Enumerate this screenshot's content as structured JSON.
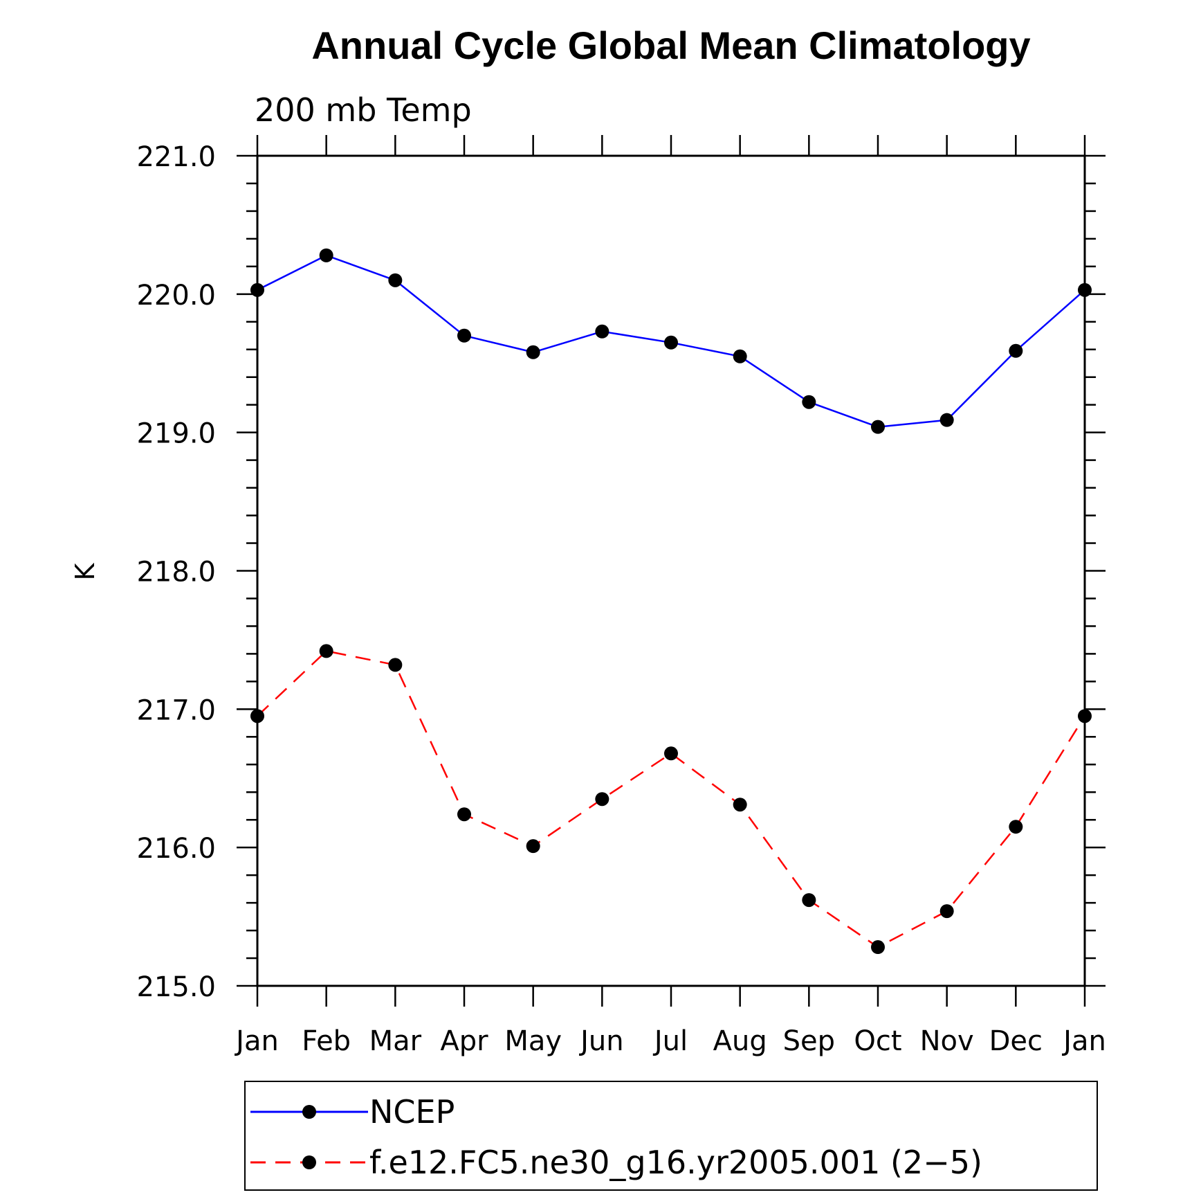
{
  "chart_data": {
    "type": "line",
    "title": "Annual Cycle Global Mean Climatology",
    "subtitle": "200 mb Temp",
    "xlabel": "",
    "ylabel": "K",
    "categories": [
      "Jan",
      "Feb",
      "Mar",
      "Apr",
      "May",
      "Jun",
      "Jul",
      "Aug",
      "Sep",
      "Oct",
      "Nov",
      "Dec",
      "Jan"
    ],
    "ylim": [
      215.0,
      221.0
    ],
    "yticks": [
      "215.0",
      "216.0",
      "217.0",
      "218.0",
      "219.0",
      "220.0",
      "221.0"
    ],
    "grid": false,
    "legend_position": "bottom",
    "series": [
      {
        "name": "NCEP",
        "color": "#0000ff",
        "style": "solid",
        "marker": "filled-circle",
        "values": [
          220.03,
          220.28,
          220.1,
          219.7,
          219.58,
          219.73,
          219.65,
          219.55,
          219.22,
          219.04,
          219.09,
          219.59,
          220.03
        ]
      },
      {
        "name": "f.e12.FC5.ne30_g16.yr2005.001 (2−5)",
        "color": "#ff0000",
        "style": "dashed",
        "marker": "filled-circle",
        "values": [
          216.95,
          217.42,
          217.32,
          216.24,
          216.01,
          216.35,
          216.68,
          216.31,
          215.62,
          215.28,
          215.54,
          216.15,
          216.95
        ]
      }
    ]
  }
}
